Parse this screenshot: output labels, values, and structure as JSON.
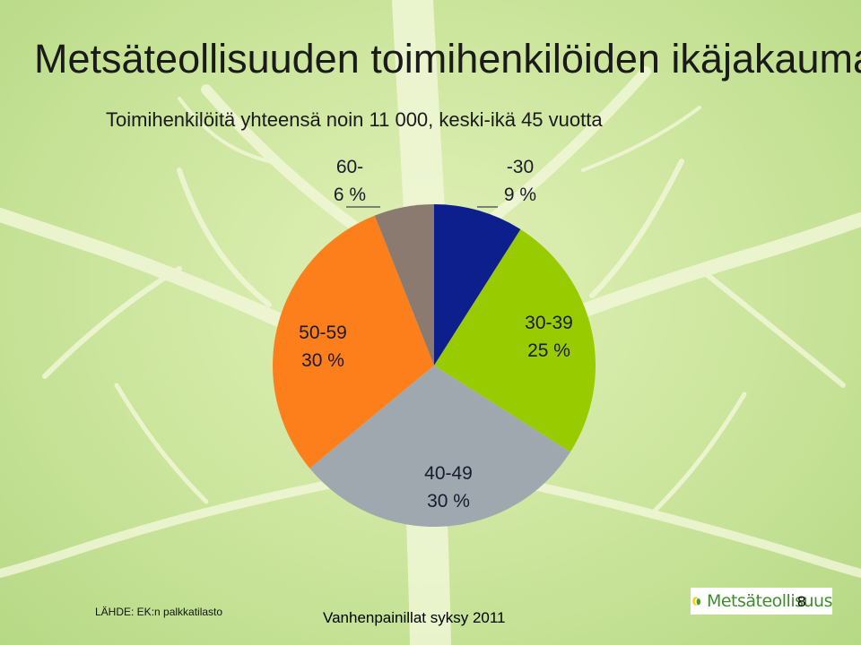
{
  "slide": {
    "title": "Metsäteollisuuden toimihenkilöiden ikäjakauma",
    "subtitle": "Toimihenkilöitä yhteensä noin 11 000, keski-ikä 45 vuotta",
    "source": "LÄHDE: EK:n palkkatilasto",
    "footer": "Vanhenpainillat syksy 2011",
    "page_number": "8",
    "logo_text": "Metsäteollisuus"
  },
  "chart_data": {
    "type": "pie",
    "title": "",
    "start": "12 o'clock, clockwise",
    "slices": [
      {
        "category": "-30",
        "label": "9 %",
        "value": 9,
        "color": "#0d1f8c"
      },
      {
        "category": "30-39",
        "label": "25 %",
        "value": 25,
        "color": "#99cc00"
      },
      {
        "category": "40-49",
        "label": "30 %",
        "value": 30,
        "color": "#9ea8ae"
      },
      {
        "category": "50-59",
        "label": "30 %",
        "value": 30,
        "color": "#fc7f1c"
      },
      {
        "category": "60-",
        "label": "6 %",
        "value": 6,
        "color": "#8b7a70"
      }
    ]
  }
}
